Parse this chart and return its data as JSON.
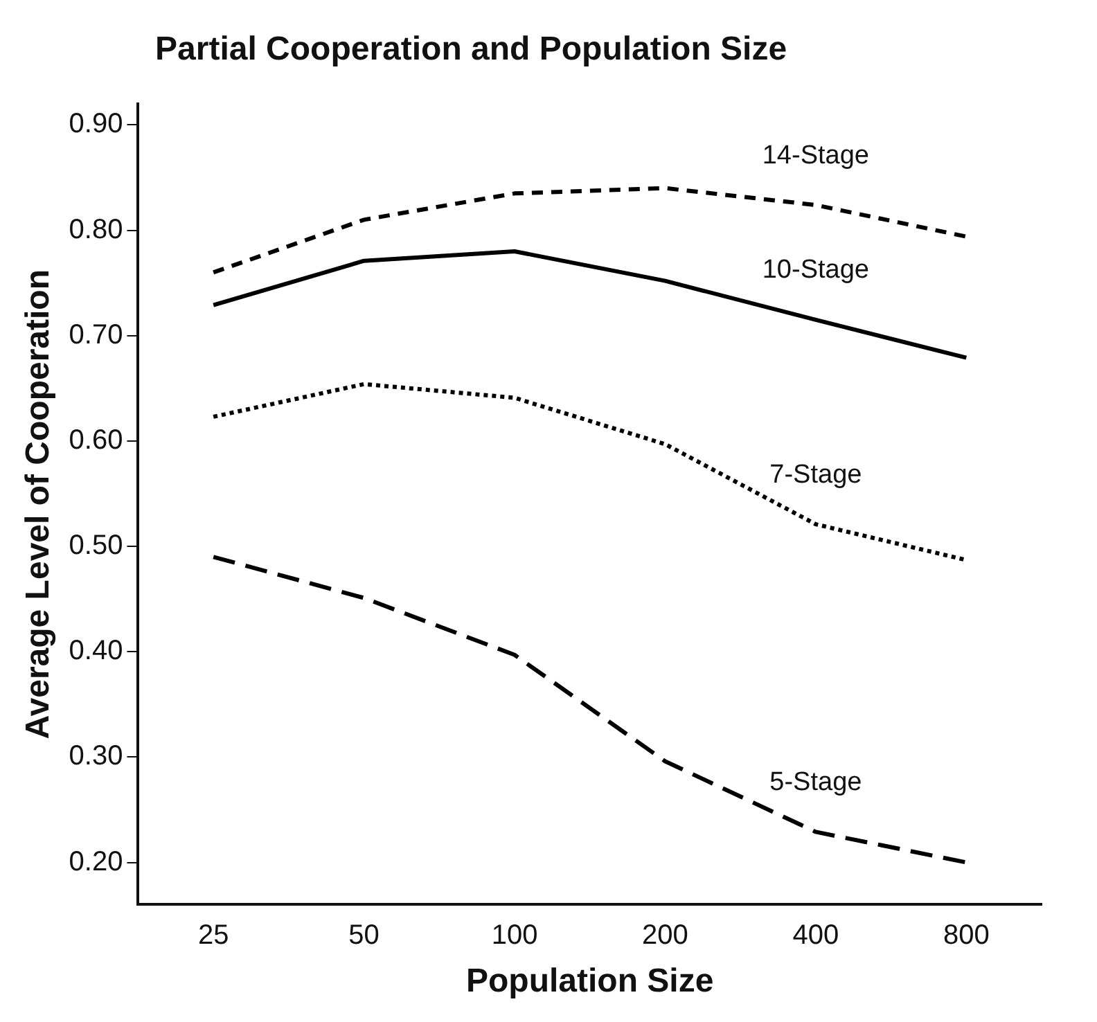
{
  "chart_data": {
    "type": "line",
    "title": "Partial Cooperation and Population Size",
    "xlabel": "Population Size",
    "ylabel": "Average Level of Cooperation",
    "categories": [
      "25",
      "50",
      "100",
      "200",
      "400",
      "800"
    ],
    "series": [
      {
        "name": "14-Stage",
        "color": "#000000",
        "line_style": "dashed",
        "values": [
          0.76,
          0.81,
          0.835,
          0.84,
          0.824,
          0.794
        ]
      },
      {
        "name": "10-Stage",
        "color": "#000000",
        "line_style": "solid",
        "values": [
          0.729,
          0.771,
          0.78,
          0.752,
          0.715,
          0.679
        ]
      },
      {
        "name": "7-Stage",
        "color": "#000000",
        "line_style": "dotted",
        "values": [
          0.623,
          0.654,
          0.641,
          0.597,
          0.521,
          0.487
        ]
      },
      {
        "name": "5-Stage",
        "color": "#000000",
        "line_style": "longdash",
        "values": [
          0.49,
          0.451,
          0.397,
          0.296,
          0.229,
          0.2
        ]
      }
    ],
    "ylim": [
      0.16,
      0.92
    ],
    "yticks": [
      {
        "value": 0.2,
        "label": "0.20"
      },
      {
        "value": 0.3,
        "label": "0.30"
      },
      {
        "value": 0.4,
        "label": "0.40"
      },
      {
        "value": 0.5,
        "label": "0.50"
      },
      {
        "value": 0.6,
        "label": "0.60"
      },
      {
        "value": 0.7,
        "label": "0.70"
      },
      {
        "value": 0.8,
        "label": "0.80"
      },
      {
        "value": 0.9,
        "label": "0.90"
      }
    ],
    "grid": false,
    "legend": false,
    "marker": "none"
  }
}
